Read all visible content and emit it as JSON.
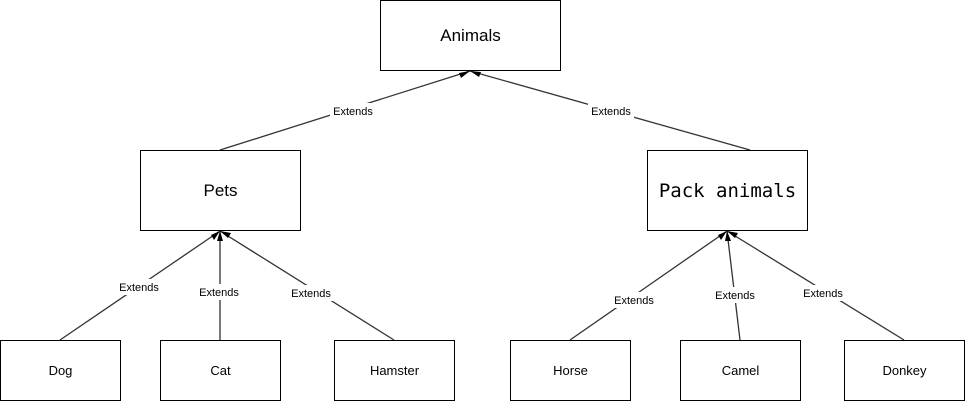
{
  "nodes": {
    "animals": "Animals",
    "pets": "Pets",
    "pack_animals": "Pack animals",
    "dog": "Dog",
    "cat": "Cat",
    "hamster": "Hamster",
    "horse": "Horse",
    "camel": "Camel",
    "donkey": "Donkey"
  },
  "edges": [
    {
      "from": "Pets",
      "to": "Animals",
      "label": "Extends"
    },
    {
      "from": "Pack animals",
      "to": "Animals",
      "label": "Extends"
    },
    {
      "from": "Dog",
      "to": "Pets",
      "label": "Extends"
    },
    {
      "from": "Cat",
      "to": "Pets",
      "label": "Extends"
    },
    {
      "from": "Hamster",
      "to": "Pets",
      "label": "Extends"
    },
    {
      "from": "Horse",
      "to": "Pack animals",
      "label": "Extends"
    },
    {
      "from": "Camel",
      "to": "Pack animals",
      "label": "Extends"
    },
    {
      "from": "Donkey",
      "to": "Pack animals",
      "label": "Extends"
    }
  ]
}
